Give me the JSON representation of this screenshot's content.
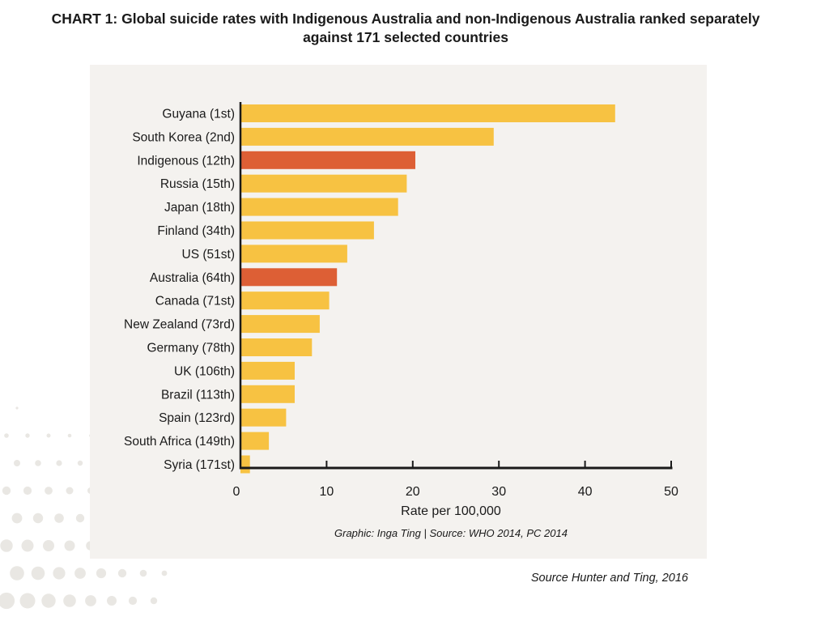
{
  "title": {
    "label": "CHART 1:",
    "line1": "Global suicide rates with Indigenous Australia and non-Indigenous Australia ranked separately",
    "line2": "against 171 selected countries"
  },
  "credit": "Graphic: Inga Ting | Source: WHO 2014, PC 2014",
  "source_note": "Source Hunter and Ting, 2016",
  "colors": {
    "bar": "#f7c242",
    "highlight": "#dd5f35",
    "panel": "#f4f2ef",
    "axis": "#1a1a1a",
    "background_dots": "#e9e7e3"
  },
  "chart_data": {
    "type": "bar",
    "orientation": "horizontal",
    "categories": [
      "Guyana (1st)",
      "South Korea (2nd)",
      "Indigenous (12th)",
      "Russia (15th)",
      "Japan (18th)",
      "Finland (34th)",
      "US (51st)",
      "Australia (64th)",
      "Canada (71st)",
      "New Zealand (73rd)",
      "Germany (78th)",
      "UK (106th)",
      "Brazil (113th)",
      "Spain (123rd)",
      "South Africa (149th)",
      "Syria (171st)"
    ],
    "values": [
      43.5,
      29.4,
      20.3,
      19.3,
      18.3,
      15.5,
      12.4,
      11.2,
      10.3,
      9.2,
      8.3,
      6.3,
      6.3,
      5.3,
      3.3,
      1.1
    ],
    "highlighted": [
      "Indigenous (12th)",
      "Australia (64th)"
    ],
    "xlabel": "Rate per 100,000",
    "ylabel": "",
    "xlim": [
      0,
      50
    ],
    "xticks": [
      0,
      10,
      20,
      30,
      40,
      50
    ],
    "grid": false,
    "legend": "none"
  }
}
